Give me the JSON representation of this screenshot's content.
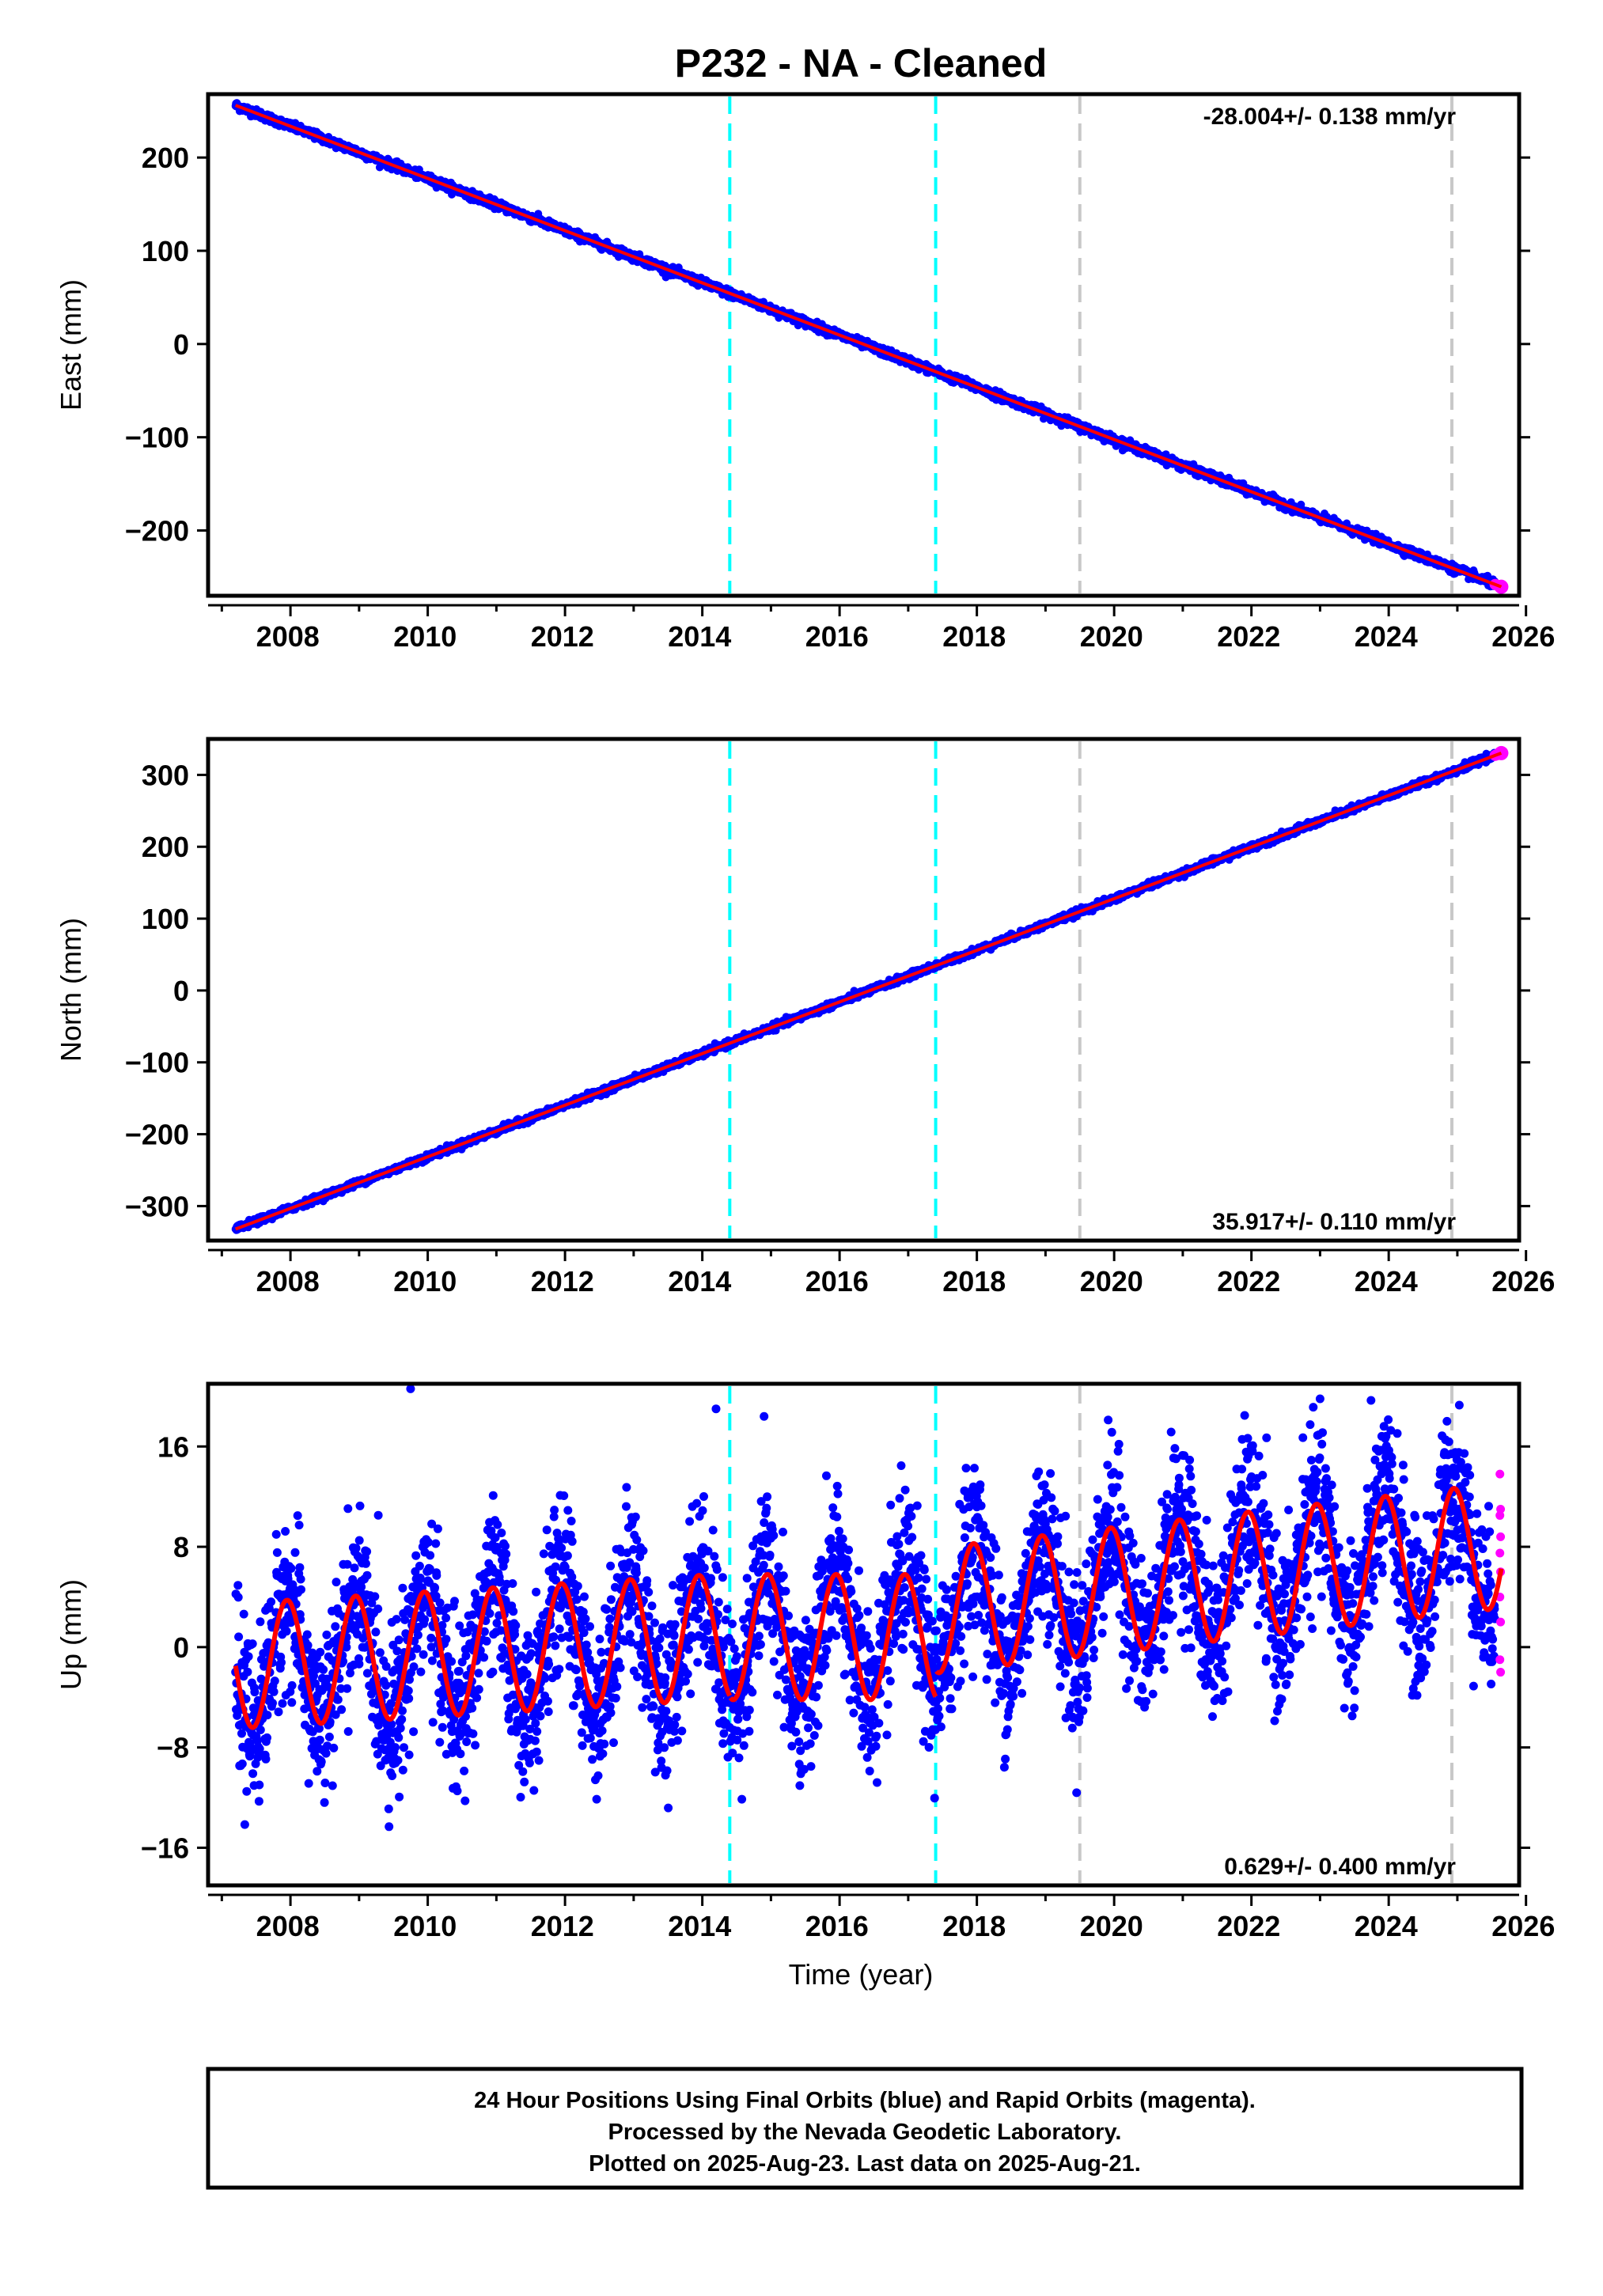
{
  "title": "P232  - NA - Cleaned",
  "colors": {
    "final_orbits": "#0000ff",
    "rapid_orbits": "#ff00ff",
    "model_fit": "#ff0000",
    "antenna_change": "#00ffff",
    "other_event": "#c8c8c8",
    "frame": "#000000"
  },
  "xlabel": "Time (year)",
  "chart_data": [
    {
      "type": "scatter",
      "component": "East",
      "ylabel": "East (mm)",
      "rate_label": "-28.004+/- 0.138 mm/yr",
      "rate_position": "top-right",
      "xlim": [
        2006.8,
        2025.9
      ],
      "ylim": [
        -270,
        268
      ],
      "xticks": [
        2008,
        2010,
        2012,
        2014,
        2016,
        2018,
        2020,
        2022,
        2024,
        2026
      ],
      "yticks": [
        -200,
        -100,
        0,
        100,
        200
      ],
      "ytick_labels": [
        "−200",
        "−100",
        "0",
        "100",
        "200"
      ],
      "x_start": 2007.2,
      "x_end": 2025.64,
      "trend": {
        "y_start": 256,
        "slope": -28.004
      },
      "series": [
        {
          "name": "24 Hour Positions Using Final Orbits (blue)",
          "role": "final_orbits"
        },
        {
          "name": "Rapid Orbits (magenta)",
          "role": "rapid_orbits",
          "x_range": [
            2025.55,
            2025.64
          ]
        },
        {
          "role": "model_fit"
        }
      ],
      "event_lines": [
        {
          "x": 2014.4,
          "kind": "antenna_change"
        },
        {
          "x": 2017.4,
          "kind": "antenna_change"
        },
        {
          "x": 2019.5,
          "kind": "other_event"
        },
        {
          "x": 2024.92,
          "kind": "other_event"
        }
      ]
    },
    {
      "type": "scatter",
      "component": "North",
      "ylabel": "North (mm)",
      "rate_label": "35.917+/- 0.110 mm/yr",
      "rate_position": "bottom-right",
      "xlim": [
        2006.8,
        2025.9
      ],
      "ylim": [
        -348,
        350
      ],
      "xticks": [
        2008,
        2010,
        2012,
        2014,
        2016,
        2018,
        2020,
        2022,
        2024,
        2026
      ],
      "yticks": [
        -300,
        -200,
        -100,
        0,
        100,
        200,
        300
      ],
      "ytick_labels": [
        "−300",
        "−200",
        "−100",
        "0",
        "100",
        "200",
        "300"
      ],
      "x_start": 2007.2,
      "x_end": 2025.64,
      "trend": {
        "y_start": -332,
        "slope": 35.917
      },
      "series": [
        {
          "name": "24 Hour Positions Using Final Orbits (blue)",
          "role": "final_orbits"
        },
        {
          "name": "Rapid Orbits (magenta)",
          "role": "rapid_orbits",
          "x_range": [
            2025.55,
            2025.64
          ]
        },
        {
          "role": "model_fit"
        }
      ],
      "event_lines": [
        {
          "x": 2014.4,
          "kind": "antenna_change"
        },
        {
          "x": 2017.4,
          "kind": "antenna_change"
        },
        {
          "x": 2019.5,
          "kind": "other_event"
        },
        {
          "x": 2024.92,
          "kind": "other_event"
        }
      ]
    },
    {
      "type": "scatter",
      "component": "Up",
      "ylabel": "Up (mm)",
      "rate_label": "0.629+/- 0.400 mm/yr",
      "rate_position": "bottom-right",
      "xlim": [
        2006.8,
        2025.9
      ],
      "ylim": [
        -19,
        21
      ],
      "xticks": [
        2008,
        2010,
        2012,
        2014,
        2016,
        2018,
        2020,
        2022,
        2024,
        2026
      ],
      "yticks": [
        -16,
        -8,
        0,
        8,
        16
      ],
      "ytick_labels": [
        "−16",
        "−8",
        "0",
        "8",
        "16"
      ],
      "x_start": 2007.2,
      "x_end": 2025.64,
      "seasonal_fit_segments": [
        {
          "x_range": [
            2007.2,
            2014.4
          ],
          "offset": -1.5,
          "slope": 0.33,
          "amplitude": 5.0,
          "phase_year": 2007.7
        },
        {
          "x_range": [
            2014.4,
            2017.4
          ],
          "offset": 0.8,
          "slope": 0.0,
          "amplitude": 5.0,
          "phase_year": 2007.7
        },
        {
          "x_range": [
            2017.4,
            2025.64
          ],
          "offset": -3.5,
          "slope": 0.629,
          "amplitude": 5.0,
          "phase_year": 2007.7
        }
      ],
      "scatter_sd": 3.2,
      "outliers": [
        {
          "x": 2009.75,
          "y": 20.6
        },
        {
          "x": 2014.2,
          "y": 19.0
        },
        {
          "x": 2014.9,
          "y": 18.4
        },
        {
          "x": 2022.75,
          "y": 16.7
        }
      ],
      "rapid_points_y": [
        13.8,
        11.0,
        10.5,
        8.8,
        7.5,
        6.0,
        4.0,
        2.0,
        -1.0,
        -2.0
      ],
      "series": [
        {
          "name": "24 Hour Positions Using Final Orbits (blue)",
          "role": "final_orbits"
        },
        {
          "name": "Rapid Orbits (magenta)",
          "role": "rapid_orbits",
          "x_range": [
            2025.55,
            2025.64
          ]
        },
        {
          "role": "model_fit"
        }
      ],
      "event_lines": [
        {
          "x": 2014.4,
          "kind": "antenna_change"
        },
        {
          "x": 2017.4,
          "kind": "antenna_change"
        },
        {
          "x": 2019.5,
          "kind": "other_event"
        },
        {
          "x": 2024.92,
          "kind": "other_event"
        }
      ]
    }
  ],
  "footer": {
    "line1": "24 Hour Positions Using Final Orbits (blue) and Rapid Orbits (magenta).",
    "line2": "Processed by the Nevada Geodetic Laboratory.",
    "line3": "Plotted on 2025-Aug-23. Last data on 2025-Aug-21."
  }
}
